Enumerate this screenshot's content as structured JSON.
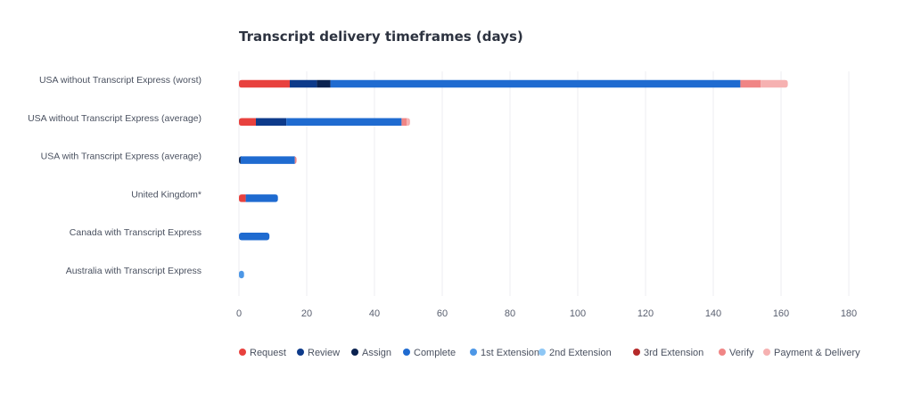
{
  "chart_data": {
    "type": "bar",
    "orientation": "horizontal",
    "stacked": true,
    "title": "Transcript delivery timeframes (days)",
    "xlabel": "",
    "ylabel": "",
    "xlim": [
      0,
      180
    ],
    "xticks": [
      0,
      20,
      40,
      60,
      80,
      100,
      120,
      140,
      160,
      180
    ],
    "grid": true,
    "legend_position": "bottom",
    "categories": [
      "USA without Transcript Express (worst)",
      "USA without Transcript Express (average)",
      "USA with Transcript Express (average)",
      "United Kingdom*",
      "Canada with Transcript Express",
      "Australia with Transcript Express"
    ],
    "series": [
      {
        "name": "Request",
        "color": "#e8413e",
        "values": [
          15,
          5,
          0,
          2,
          0,
          0
        ]
      },
      {
        "name": "Review",
        "color": "#0d3a8a",
        "values": [
          8,
          9,
          0,
          0,
          0,
          0
        ]
      },
      {
        "name": "Assign",
        "color": "#0a2250",
        "values": [
          4,
          0,
          0.5,
          0,
          0,
          0
        ]
      },
      {
        "name": "Complete",
        "color": "#1f6bd0",
        "values": [
          121,
          34,
          16,
          9.5,
          9,
          0
        ]
      },
      {
        "name": "1st Extension",
        "color": "#4d97e6",
        "values": [
          0,
          0,
          0,
          0,
          0,
          1.5
        ]
      },
      {
        "name": "2nd Extension",
        "color": "#8ec7f5",
        "values": [
          0,
          0,
          0,
          0,
          0,
          0
        ]
      },
      {
        "name": "3rd Extension",
        "color": "#b52a2a",
        "values": [
          0,
          0,
          0,
          0,
          0,
          0
        ]
      },
      {
        "name": "Verify",
        "color": "#f08585",
        "values": [
          6,
          1.5,
          0.5,
          0,
          0,
          0
        ]
      },
      {
        "name": "Payment & Delivery",
        "color": "#f6b1b1",
        "values": [
          8,
          1,
          0,
          0,
          0,
          0
        ]
      }
    ]
  }
}
